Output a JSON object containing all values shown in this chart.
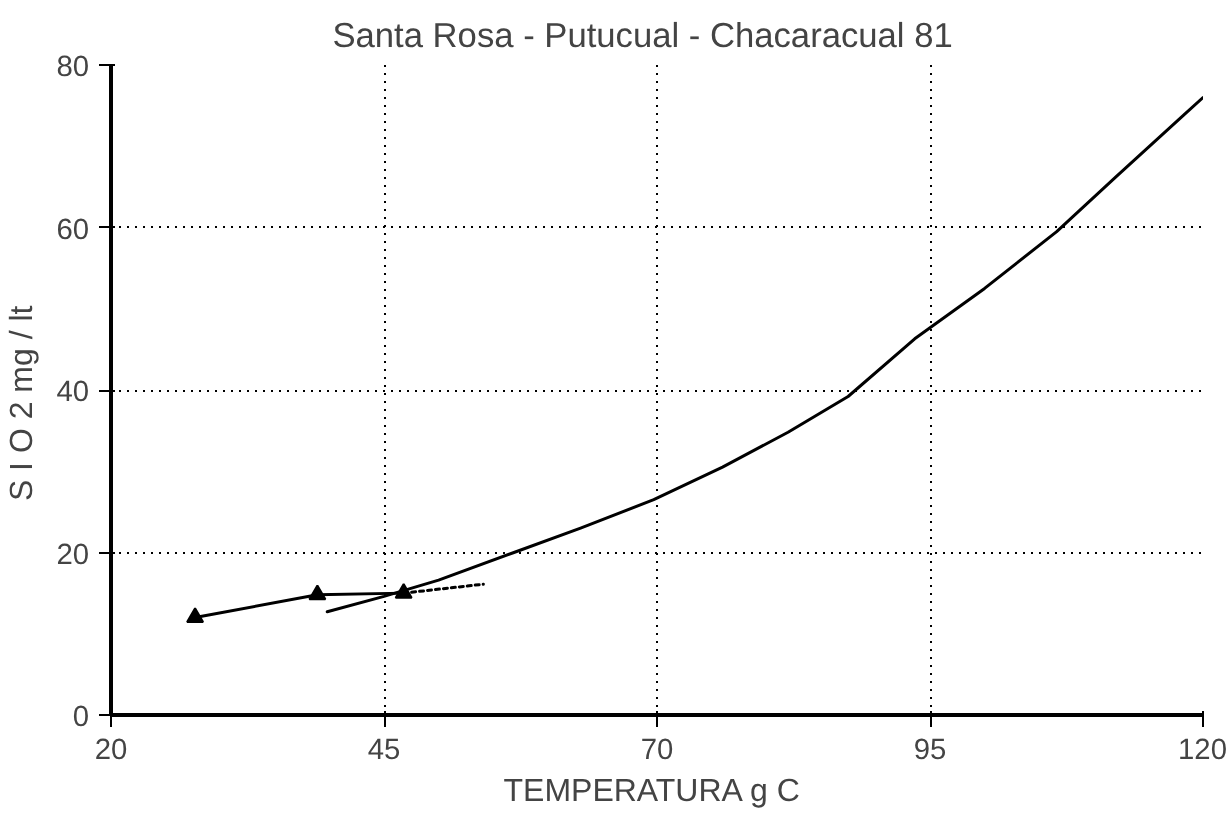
{
  "chart_data": {
    "type": "line",
    "title": "Santa Rosa - Putucual - Chacaracual    81",
    "xlabel": "TEMPERATURA  g C",
    "ylabel": "S I O 2    mg / lt",
    "xlim": [
      20,
      120
    ],
    "xticks": [
      20,
      45,
      70,
      95,
      120
    ],
    "ylim": [
      0,
      80
    ],
    "yticks": [
      0,
      20,
      40,
      60,
      80
    ],
    "grid": true,
    "series": [
      {
        "color": "#000000",
        "marker": "triangle",
        "line_style": "solid",
        "x": [
          27.7,
          38.9,
          46.8
        ],
        "values": [
          12,
          14.8,
          15
        ]
      },
      {
        "color": "#000000",
        "marker": "none",
        "line_style": "dotted",
        "x": [
          46.8,
          54.1
        ],
        "values": [
          15,
          16.1
        ]
      },
      {
        "color": "#000000",
        "marker": "none",
        "line_style": "solid",
        "x": [
          39.8,
          45,
          50,
          56.9,
          63,
          69.7,
          76,
          82,
          87.5,
          93.6,
          100,
          106.6,
          112,
          118.2,
          120
        ],
        "values": [
          12.7,
          14.6,
          16.6,
          20,
          23,
          26.5,
          30.5,
          34.8,
          39.2,
          46.3,
          52.5,
          59.5,
          66.2,
          73.8,
          76
        ]
      }
    ]
  }
}
